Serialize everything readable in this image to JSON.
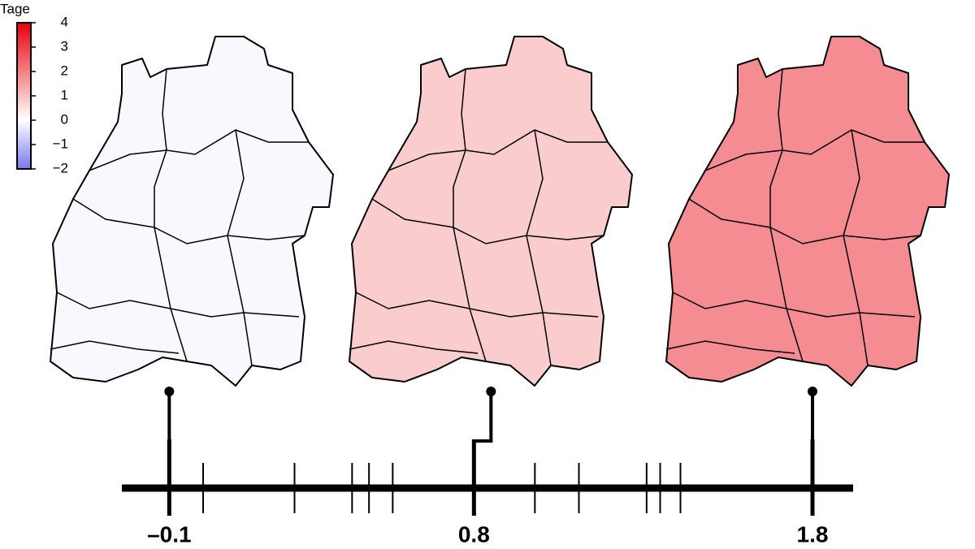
{
  "chart_data": {
    "type": "strip",
    "colorbar": {
      "title": "Tage",
      "lim": [
        -2,
        4
      ],
      "ticks": [
        4,
        3,
        2,
        1,
        0,
        {
          "value": -1,
          "label": "−1"
        },
        {
          "value": -2,
          "label": "−2"
        }
      ],
      "colorscale": [
        [
          -2,
          "#7878f0"
        ],
        [
          0,
          "#ffffff"
        ],
        [
          4,
          "#e8000b"
        ]
      ]
    },
    "xlim": [
      -0.24,
      1.92
    ],
    "xticks": [
      {
        "value": -0.1,
        "label": "–0.1"
      },
      0.8,
      1.8
    ],
    "values": [
      0.0,
      0.27,
      0.44,
      0.49,
      0.56,
      0.98,
      1.11,
      1.31,
      1.35,
      1.41
    ]
  }
}
